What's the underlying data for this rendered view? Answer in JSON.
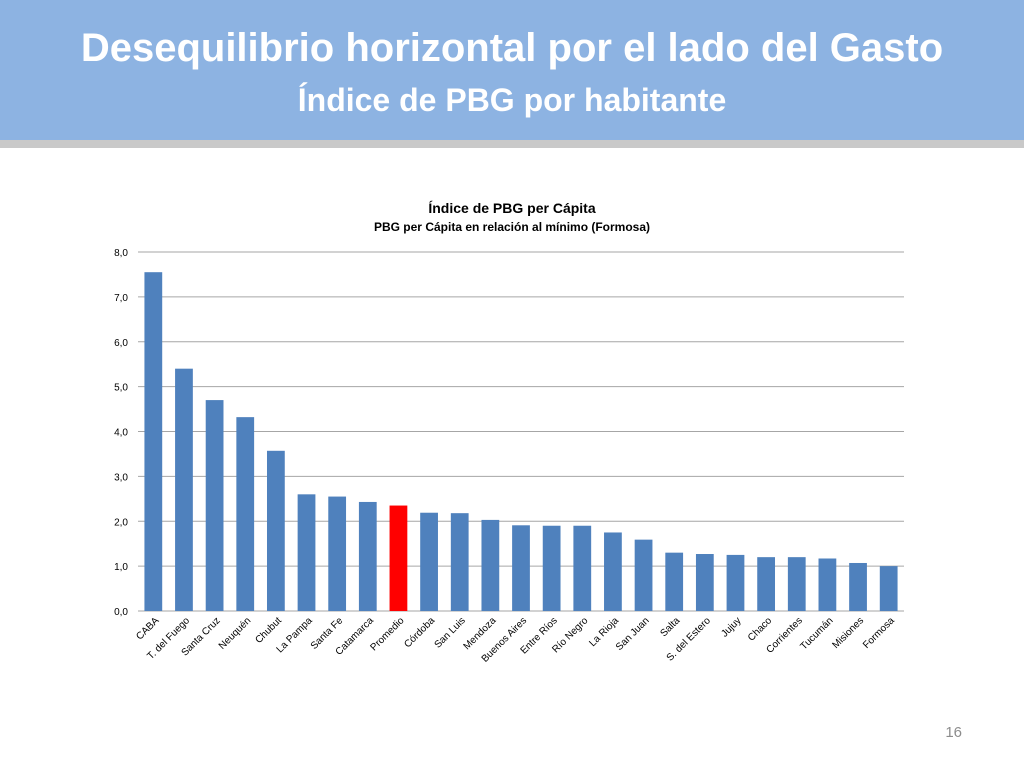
{
  "slide": {
    "title": "Desequilibrio horizontal por el lado del Gasto",
    "subtitle": "Índice de  PBG  por habitante",
    "page_number": "16"
  },
  "colors": {
    "header": "#8db3e2",
    "bar": "#4f81bd",
    "highlight": "#ff0000",
    "grid": "#a6a6a6"
  },
  "chart_data": {
    "type": "bar",
    "title": "Índice de PBG per Cápita",
    "subtitle": "PBG per Cápita en relación al mínimo (Formosa)",
    "categories": [
      "CABA",
      "T. del Fuego",
      "Santa Cruz",
      "Neuquén",
      "Chubut",
      "La Pampa",
      "Santa Fe",
      "Catamarca",
      "Promedio",
      "Córdoba",
      "San Luis",
      "Mendoza",
      "Buenos Aires",
      "Entre Ríos",
      "Río Negro",
      "La Rioja",
      "San Juan",
      "Salta",
      "S. del Estero",
      "Jujuy",
      "Chaco",
      "Corrientes",
      "Tucumán",
      "Misiones",
      "Formosa"
    ],
    "values": [
      7.55,
      5.4,
      4.7,
      4.32,
      3.57,
      2.6,
      2.55,
      2.43,
      2.35,
      2.19,
      2.18,
      2.03,
      1.91,
      1.9,
      1.9,
      1.75,
      1.59,
      1.3,
      1.27,
      1.25,
      1.2,
      1.2,
      1.17,
      1.07,
      1.0
    ],
    "highlight": "Promedio",
    "ylim": [
      0,
      8
    ],
    "yticks": [
      "0,0",
      "1,0",
      "2,0",
      "3,0",
      "4,0",
      "5,0",
      "6,0",
      "7,0",
      "8,0"
    ],
    "grid": true,
    "legend": "none"
  }
}
